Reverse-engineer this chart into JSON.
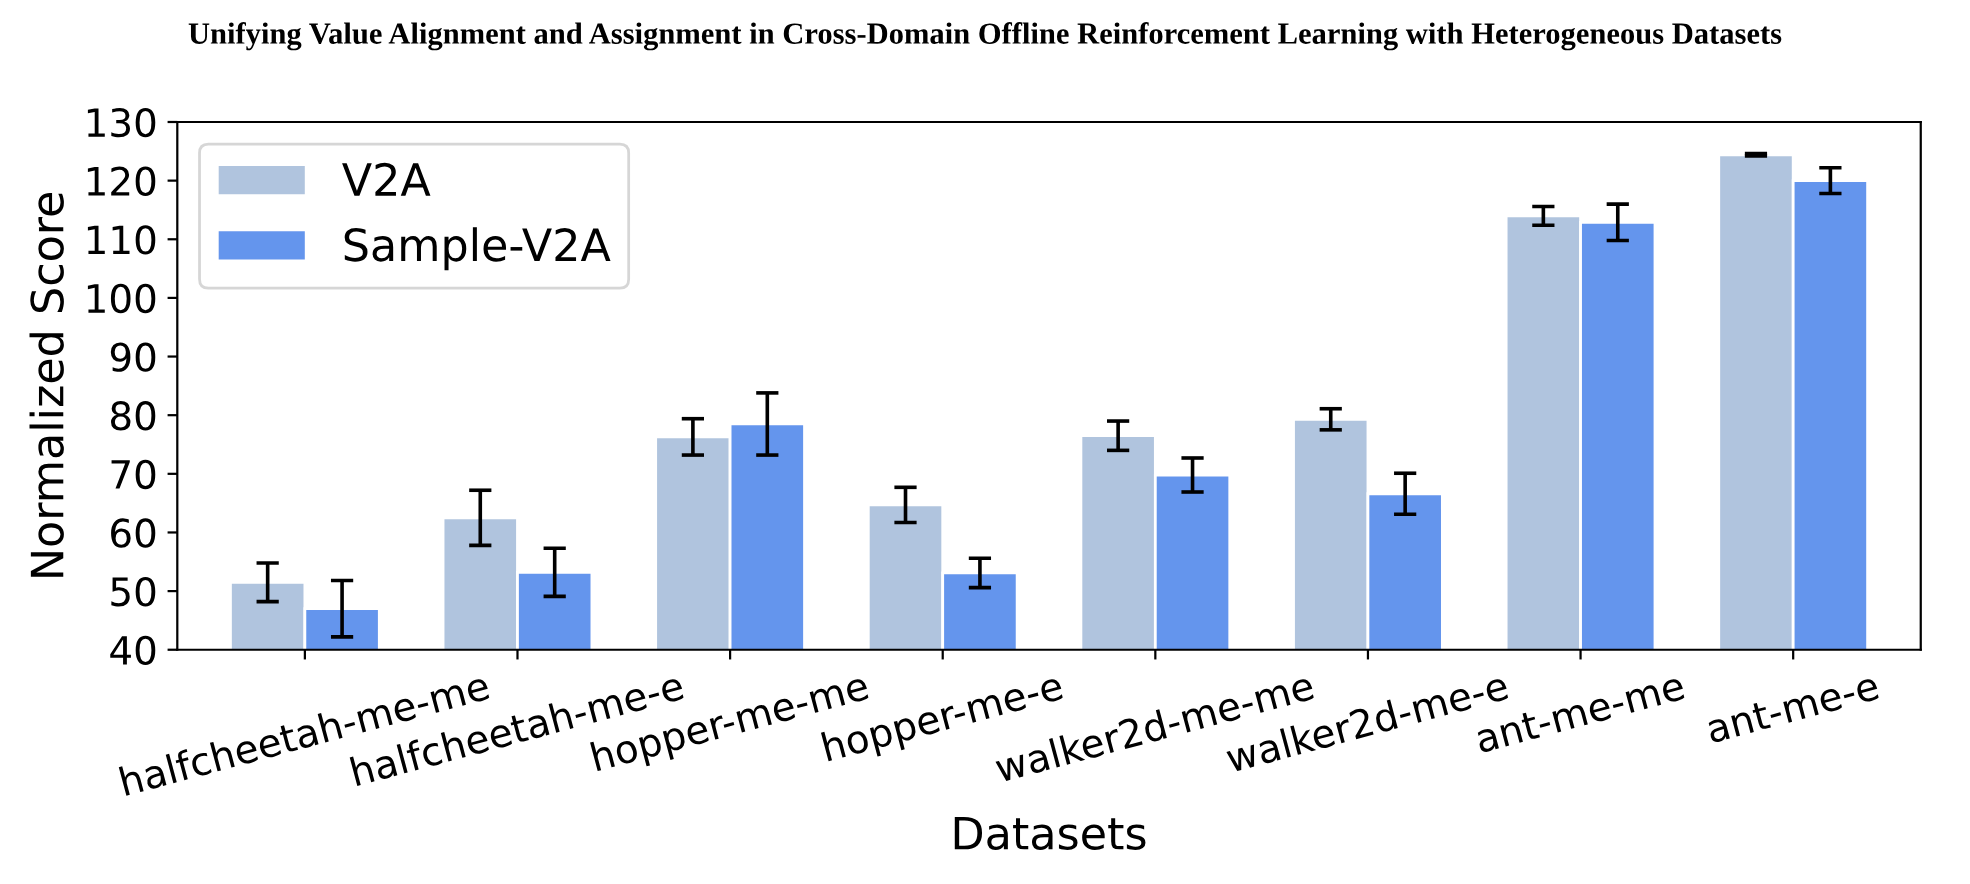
{
  "chart_data": {
    "type": "bar",
    "title": "Unifying Value Alignment and Assignment in Cross-Domain Offline Reinforcement Learning with Heterogeneous Datasets",
    "xlabel": "Datasets",
    "ylabel": "Normalized Score",
    "categories": [
      "halfcheetah-me-me",
      "halfcheetah-me-e",
      "hopper-me-me",
      "hopper-me-e",
      "walker2d-me-me",
      "walker2d-me-e",
      "ant-me-me",
      "ant-me-e"
    ],
    "series": [
      {
        "name": "V2A",
        "color": "#b0c4de",
        "values": [
          51.5,
          62.5,
          76.3,
          64.7,
          76.5,
          79.3,
          114.0,
          124.4
        ],
        "errors": [
          3.3,
          4.7,
          3.1,
          3.0,
          2.5,
          1.8,
          1.6,
          0.2
        ]
      },
      {
        "name": "Sample-V2A",
        "color": "#6495ed",
        "values": [
          47.0,
          53.2,
          78.5,
          53.1,
          69.8,
          66.6,
          112.9,
          120.0
        ],
        "errors": [
          4.8,
          4.1,
          5.3,
          2.5,
          2.9,
          3.5,
          3.1,
          2.2
        ]
      }
    ],
    "ylim": [
      40,
      130
    ],
    "yticks": [
      40,
      50,
      60,
      70,
      80,
      90,
      100,
      110,
      120,
      130
    ],
    "grid": false,
    "legend": "top left"
  }
}
